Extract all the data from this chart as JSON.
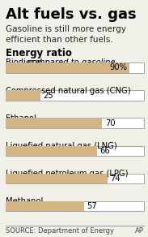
{
  "title": "Alt fuels vs. gas",
  "subtitle": "Gasoline is still more energy\nefficient than other fuels.",
  "section_label": "Energy ratio",
  "bars": [
    {
      "label": "Biodiesel",
      "label_rest": "compared to gasoline",
      "label_italic": true,
      "value": 90,
      "display": "90%"
    },
    {
      "label": "Compressed natural gas (CNG)",
      "label_rest": "",
      "label_italic": false,
      "value": 25,
      "display": "25"
    },
    {
      "label": "Ethanol",
      "label_rest": "",
      "label_italic": false,
      "value": 70,
      "display": "70"
    },
    {
      "label": "Liquefied natural gas (LNG)",
      "label_rest": "",
      "label_italic": false,
      "value": 66,
      "display": "66"
    },
    {
      "label": "Liquefied petroleum gas (LPG)",
      "label_rest": "",
      "label_italic": false,
      "value": 74,
      "display": "74"
    },
    {
      "label": "Methanol",
      "label_rest": "",
      "label_italic": false,
      "value": 57,
      "display": "57"
    }
  ],
  "bar_color": "#D4B483",
  "bar_outline_color": "#999999",
  "bar_max": 100,
  "source": "SOURCE: Department of Energy",
  "credit": "AP",
  "bg_color": "#F0EFE8",
  "title_fontsize": 13,
  "subtitle_fontsize": 7.5,
  "section_fontsize": 8.5,
  "label_fontsize": 7.2,
  "value_fontsize": 7.2,
  "source_fontsize": 6.0
}
